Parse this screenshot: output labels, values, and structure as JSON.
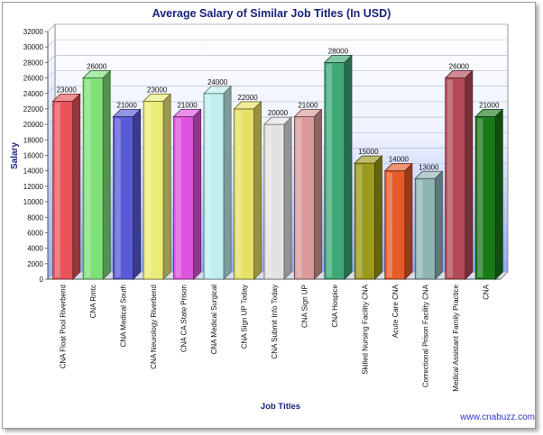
{
  "chart_data": {
    "type": "bar",
    "title": "Average Salary of Similar Job Titles (In USD)",
    "xlabel": "Job Titles",
    "ylabel": "Salary",
    "ylim": [
      0,
      32000
    ],
    "ytick_step": 2000,
    "grid": true,
    "legend": "none",
    "categories": [
      "CNA Float Pool Riverbend",
      "CNA Rmtc",
      "CNA Medical South",
      "CNA Neurology Riverbend",
      "CNA CA State Prison",
      "CNA Medical Surgical",
      "CNA Sign UP Today",
      "CNA Submit Info Today",
      "CNA Sign UP",
      "CNA Hospice",
      "Skilled Nursing Facility CNA",
      "Acute Care CNA",
      "Correctional Prison Facility CNA",
      "Medical Assistant Family Practice",
      "CNA"
    ],
    "values": [
      23000,
      26000,
      21000,
      23000,
      21000,
      24000,
      22000,
      20000,
      21000,
      28000,
      15000,
      14000,
      13000,
      26000,
      21000
    ],
    "colors": [
      "#e8545a",
      "#7fe07a",
      "#5a5ad6",
      "#ecec7a",
      "#dd55dd",
      "#bfeeee",
      "#e6e066",
      "#e2e2e2",
      "#d89a9a",
      "#3fa877",
      "#9a9a1c",
      "#e85a28",
      "#8fb4b4",
      "#b44a55",
      "#1a7a1a"
    ]
  },
  "credit": "www.cnabuzz.com"
}
